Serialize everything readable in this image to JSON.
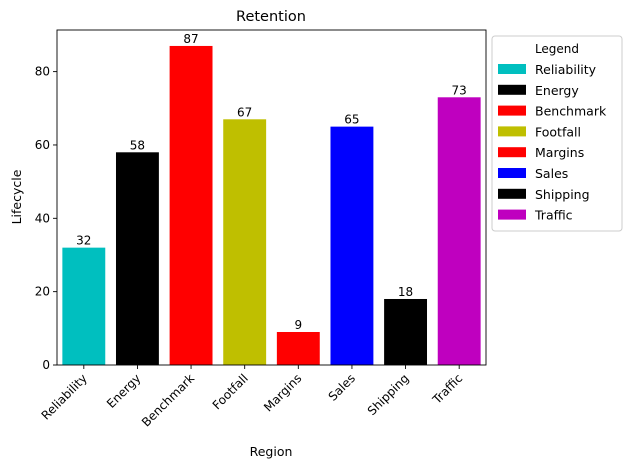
{
  "chart_data": {
    "type": "bar",
    "title": "Retention",
    "xlabel": "Region",
    "ylabel": "Lifecycle",
    "categories": [
      "Reliability",
      "Energy",
      "Benchmark",
      "Footfall",
      "Margins",
      "Sales",
      "Shipping",
      "Traffic"
    ],
    "values": [
      32,
      58,
      87,
      67,
      9,
      65,
      18,
      73
    ],
    "colors": [
      "#00BFBF",
      "#000000",
      "#FF0000",
      "#BFBF00",
      "#FF0000",
      "#0000FF",
      "#000000",
      "#BF00BF"
    ],
    "ylim": [
      0,
      91.35
    ],
    "yticks": [
      0,
      20,
      40,
      60,
      80
    ],
    "grid": false,
    "data_labels": true,
    "legend": {
      "title": "Legend",
      "placement": "outside-right",
      "entries": [
        "Reliability",
        "Energy",
        "Benchmark",
        "Footfall",
        "Margins",
        "Sales",
        "Shipping",
        "Traffic"
      ]
    }
  }
}
